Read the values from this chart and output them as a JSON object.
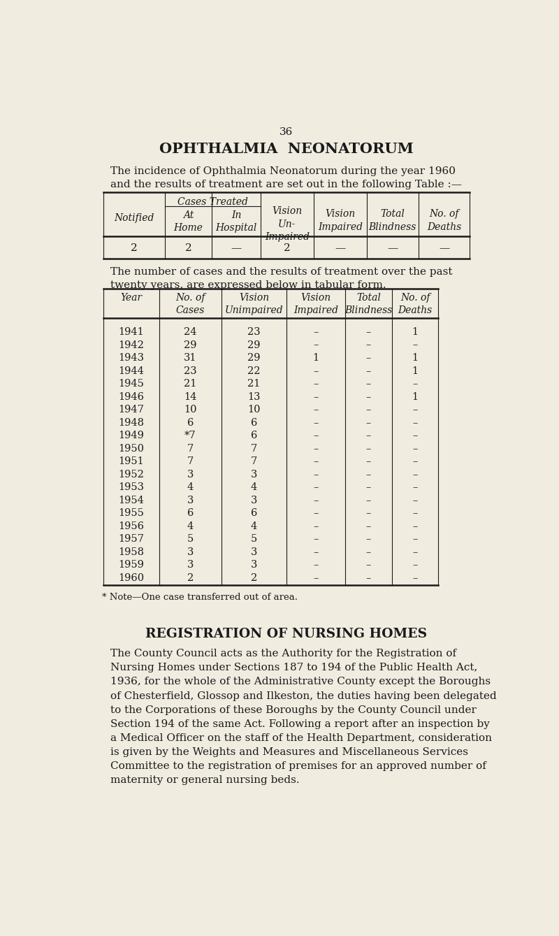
{
  "page_number": "36",
  "title1": "OPHTHALMIA  NEONATORUM",
  "intro_text1": "The incidence of Ophthalmia Neonatorum during the year 1960\nand the results of treatment are set out in the following Table :—",
  "table1_data": [
    [
      "2",
      "2",
      "—",
      "2",
      "—",
      "—",
      "—"
    ]
  ],
  "intro_text2": "The number of cases and the results of treatment over the past\ntwenty years, are expressed below in tabular form.",
  "table2_data": [
    [
      "1941",
      "24",
      "23",
      "–",
      "–",
      "1"
    ],
    [
      "1942",
      "29",
      "29",
      "–",
      "–",
      "–"
    ],
    [
      "1943",
      "31",
      "29",
      "1",
      "–",
      "1"
    ],
    [
      "1944",
      "23",
      "22",
      "–",
      "–",
      "1"
    ],
    [
      "1945",
      "21",
      "21",
      "–",
      "–",
      "–"
    ],
    [
      "1946",
      "14",
      "13",
      "–",
      "–",
      "1"
    ],
    [
      "1947",
      "10",
      "10",
      "–",
      "–",
      "–"
    ],
    [
      "1948",
      "6",
      "6",
      "–",
      "–",
      "–"
    ],
    [
      "1949",
      "*7",
      "6",
      "–",
      "–",
      "–"
    ],
    [
      "1950",
      "7",
      "7",
      "–",
      "–",
      "–"
    ],
    [
      "1951",
      "7",
      "7",
      "–",
      "–",
      "–"
    ],
    [
      "1952",
      "3",
      "3",
      "–",
      "–",
      "–"
    ],
    [
      "1953",
      "4",
      "4",
      "–",
      "–",
      "–"
    ],
    [
      "1954",
      "3",
      "3",
      "–",
      "–",
      "–"
    ],
    [
      "1955",
      "6",
      "6",
      "–",
      "–",
      "–"
    ],
    [
      "1956",
      "4",
      "4",
      "–",
      "–",
      "–"
    ],
    [
      "1957",
      "5",
      "5",
      "–",
      "–",
      "–"
    ],
    [
      "1958",
      "3",
      "3",
      "–",
      "–",
      "–"
    ],
    [
      "1959",
      "3",
      "3",
      "–",
      "–",
      "–"
    ],
    [
      "1960",
      "2",
      "2",
      "–",
      "–",
      "–"
    ]
  ],
  "note_text": "* Note—One case transferred out of area.",
  "title2": "REGISTRATION OF NURSING HOMES",
  "body_text": "The County Council acts as the Authority for the Registration of\nNursing Homes under Sections 187 to 194 of the Public Health Act,\n1936, for the whole of the Administrative County except the Boroughs\nof Chesterfield, Glossop and Ilkeston, the duties having been delegated\nto the Corporations of these Boroughs by the County Council under\nSection 194 of the same Act. Following a report after an inspection by\na Medical Officer on the staff of the Health Department, consideration\nis given by the Weights and Measures and Miscellaneous Services\nCommittee to the registration of premises for an approved number of\nmaternity or general nursing beds.",
  "bg_color": "#f0ece0",
  "text_color": "#1a1a1a",
  "line_color": "#1a1a1a"
}
